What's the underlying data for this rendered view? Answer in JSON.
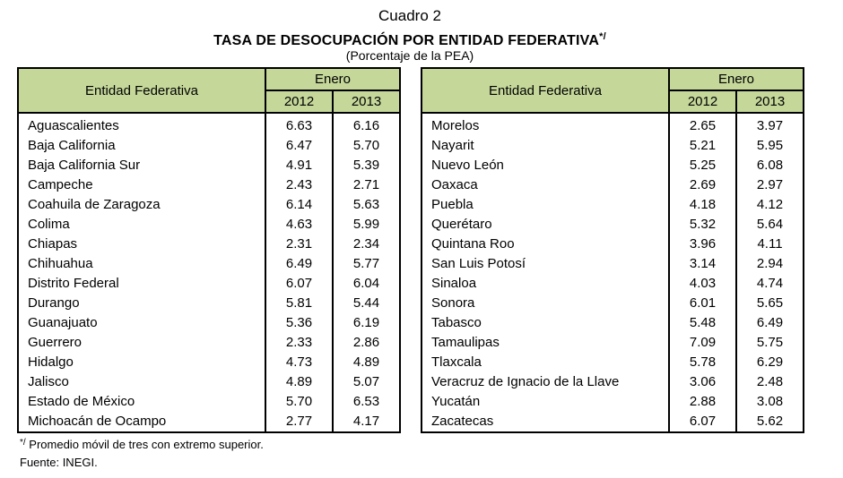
{
  "title": "Cuadro 2",
  "subtitle": "TASA DE DESOCUPACIÓN POR ENTIDAD FEDERATIVA",
  "subtitle_mark": "*/",
  "units": "(Porcentaje de la PEA)",
  "headers": {
    "entity": "Entidad Federativa",
    "period": "Enero",
    "year1": "2012",
    "year2": "2013"
  },
  "left_rows": [
    {
      "name": "Aguascalientes",
      "y2012": "6.63",
      "y2013": "6.16"
    },
    {
      "name": "Baja California",
      "y2012": "6.47",
      "y2013": "5.70"
    },
    {
      "name": "Baja California Sur",
      "y2012": "4.91",
      "y2013": "5.39"
    },
    {
      "name": "Campeche",
      "y2012": "2.43",
      "y2013": "2.71"
    },
    {
      "name": "Coahuila de Zaragoza",
      "y2012": "6.14",
      "y2013": "5.63"
    },
    {
      "name": "Colima",
      "y2012": "4.63",
      "y2013": "5.99"
    },
    {
      "name": "Chiapas",
      "y2012": "2.31",
      "y2013": "2.34"
    },
    {
      "name": "Chihuahua",
      "y2012": "6.49",
      "y2013": "5.77"
    },
    {
      "name": "Distrito Federal",
      "y2012": "6.07",
      "y2013": "6.04"
    },
    {
      "name": "Durango",
      "y2012": "5.81",
      "y2013": "5.44"
    },
    {
      "name": "Guanajuato",
      "y2012": "5.36",
      "y2013": "6.19"
    },
    {
      "name": "Guerrero",
      "y2012": "2.33",
      "y2013": "2.86"
    },
    {
      "name": "Hidalgo",
      "y2012": "4.73",
      "y2013": "4.89"
    },
    {
      "name": "Jalisco",
      "y2012": "4.89",
      "y2013": "5.07"
    },
    {
      "name": "Estado de México",
      "y2012": "5.70",
      "y2013": "6.53"
    },
    {
      "name": "Michoacán de Ocampo",
      "y2012": "2.77",
      "y2013": "4.17"
    }
  ],
  "right_rows": [
    {
      "name": "Morelos",
      "y2012": "2.65",
      "y2013": "3.97"
    },
    {
      "name": "Nayarit",
      "y2012": "5.21",
      "y2013": "5.95"
    },
    {
      "name": "Nuevo León",
      "y2012": "5.25",
      "y2013": "6.08"
    },
    {
      "name": "Oaxaca",
      "y2012": "2.69",
      "y2013": "2.97"
    },
    {
      "name": "Puebla",
      "y2012": "4.18",
      "y2013": "4.12"
    },
    {
      "name": "Querétaro",
      "y2012": "5.32",
      "y2013": "5.64"
    },
    {
      "name": "Quintana Roo",
      "y2012": "3.96",
      "y2013": "4.11"
    },
    {
      "name": "San Luis Potosí",
      "y2012": "3.14",
      "y2013": "2.94"
    },
    {
      "name": "Sinaloa",
      "y2012": "4.03",
      "y2013": "4.74"
    },
    {
      "name": "Sonora",
      "y2012": "6.01",
      "y2013": "5.65"
    },
    {
      "name": "Tabasco",
      "y2012": "5.48",
      "y2013": "6.49"
    },
    {
      "name": "Tamaulipas",
      "y2012": "7.09",
      "y2013": "5.75"
    },
    {
      "name": "Tlaxcala",
      "y2012": "5.78",
      "y2013": "6.29"
    },
    {
      "name": "Veracruz de Ignacio de la Llave",
      "y2012": "3.06",
      "y2013": "2.48"
    },
    {
      "name": "Yucatán",
      "y2012": "2.88",
      "y2013": "3.08"
    },
    {
      "name": "Zacatecas",
      "y2012": "6.07",
      "y2013": "5.62"
    }
  ],
  "footnote_mark": "*/",
  "footnote": " Promedio móvil de tres con extremo superior.",
  "source": "Fuente: INEGI.",
  "colors": {
    "header_bg": "#c5d89a",
    "border": "#000000"
  }
}
